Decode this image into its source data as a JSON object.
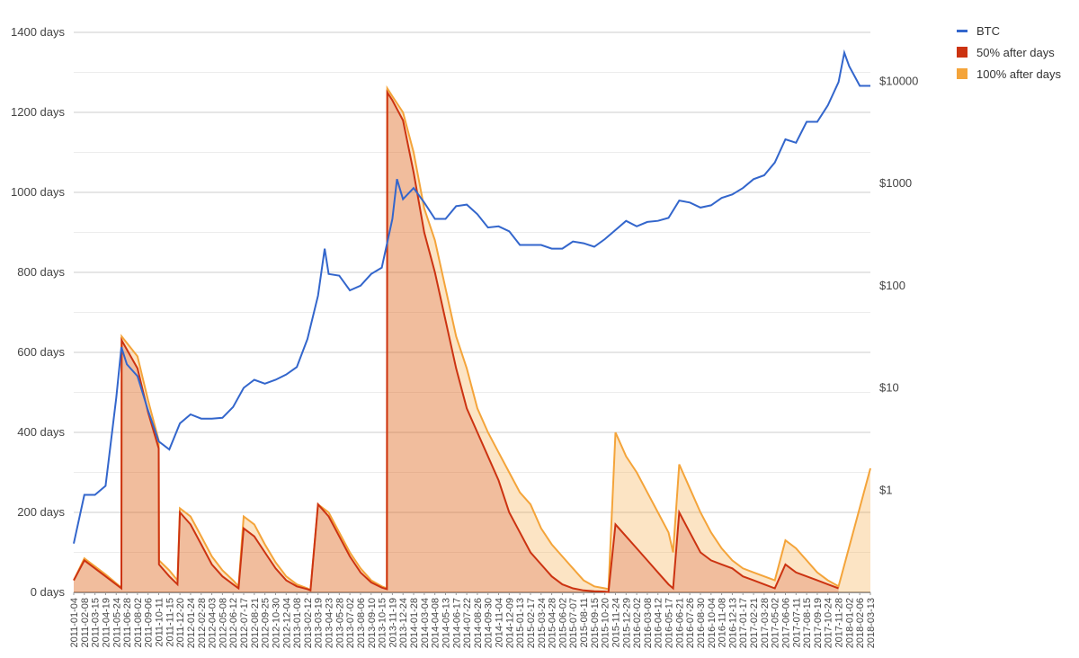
{
  "chart_data": {
    "type": "area",
    "title": "",
    "xlabel": "",
    "ylabel": "",
    "y_axis_left": {
      "ticks": [
        "0 days",
        "200 days",
        "400 days",
        "600 days",
        "800 days",
        "1000 days",
        "1200 days",
        "1400 days"
      ],
      "values": [
        0,
        200,
        400,
        600,
        800,
        1000,
        1200,
        1400
      ],
      "ylim": [
        0,
        1400
      ]
    },
    "y_axis_right": {
      "scale": "log",
      "ticks": [
        "$1",
        "$10",
        "$100",
        "$1000",
        "$10000"
      ],
      "values": [
        1,
        10,
        100,
        1000,
        10000
      ],
      "ylim": [
        0.1,
        30000
      ]
    },
    "grid": true,
    "legend_position": "top-right",
    "x_ticks": [
      "2011-01-04",
      "2011-02-08",
      "2011-03-15",
      "2011-04-19",
      "2011-05-24",
      "2011-06-28",
      "2011-08-02",
      "2011-09-06",
      "2011-10-11",
      "2011-11-15",
      "2011-12-20",
      "2012-01-24",
      "2012-02-28",
      "2012-04-03",
      "2012-05-08",
      "2012-06-12",
      "2012-07-17",
      "2012-08-21",
      "2012-09-25",
      "2012-10-30",
      "2012-12-04",
      "2013-01-08",
      "2013-02-12",
      "2013-03-19",
      "2013-04-23",
      "2013-05-28",
      "2013-07-02",
      "2013-08-06",
      "2013-09-10",
      "2013-10-15",
      "2013-11-19",
      "2013-12-24",
      "2014-01-28",
      "2014-03-04",
      "2014-04-08",
      "2014-05-13",
      "2014-06-17",
      "2014-07-22",
      "2014-08-26",
      "2014-09-30",
      "2014-11-04",
      "2014-12-09",
      "2015-01-13",
      "2015-02-17",
      "2015-03-24",
      "2015-04-28",
      "2015-06-02",
      "2015-07-07",
      "2015-08-11",
      "2015-09-15",
      "2015-10-20",
      "2015-11-24",
      "2015-12-29",
      "2016-02-02",
      "2016-03-08",
      "2016-04-12",
      "2016-05-17",
      "2016-06-21",
      "2016-07-26",
      "2016-08-30",
      "2016-10-04",
      "2016-11-08",
      "2016-12-13",
      "2017-01-17",
      "2017-02-21",
      "2017-03-28",
      "2017-05-02",
      "2017-06-06",
      "2017-07-11",
      "2017-08-15",
      "2017-09-19",
      "2017-10-24",
      "2017-11-28",
      "2018-01-02",
      "2018-02-06",
      "2018-03-13"
    ],
    "series": [
      {
        "name": "BTC",
        "kind": "line",
        "axis": "right",
        "color": "#3366cc",
        "x": [
          "2011-01-04",
          "2011-02-08",
          "2011-03-15",
          "2011-04-19",
          "2011-05-24",
          "2011-06-10",
          "2011-06-28",
          "2011-08-02",
          "2011-09-06",
          "2011-10-11",
          "2011-11-15",
          "2011-12-20",
          "2012-01-24",
          "2012-02-28",
          "2012-04-03",
          "2012-05-08",
          "2012-06-12",
          "2012-07-17",
          "2012-08-21",
          "2012-09-25",
          "2012-10-30",
          "2012-12-04",
          "2013-01-08",
          "2013-02-12",
          "2013-03-19",
          "2013-04-10",
          "2013-04-23",
          "2013-05-28",
          "2013-07-02",
          "2013-08-06",
          "2013-09-10",
          "2013-10-15",
          "2013-11-19",
          "2013-12-04",
          "2013-12-24",
          "2014-01-28",
          "2014-03-04",
          "2014-04-08",
          "2014-05-13",
          "2014-06-17",
          "2014-07-22",
          "2014-08-26",
          "2014-09-30",
          "2014-11-04",
          "2014-12-09",
          "2015-01-13",
          "2015-02-17",
          "2015-03-24",
          "2015-04-28",
          "2015-06-02",
          "2015-07-07",
          "2015-08-11",
          "2015-09-15",
          "2015-10-20",
          "2015-11-24",
          "2015-12-29",
          "2016-02-02",
          "2016-03-08",
          "2016-04-12",
          "2016-05-17",
          "2016-06-21",
          "2016-07-26",
          "2016-08-30",
          "2016-10-04",
          "2016-11-08",
          "2016-12-13",
          "2017-01-17",
          "2017-02-21",
          "2017-03-28",
          "2017-05-02",
          "2017-06-06",
          "2017-07-11",
          "2017-08-15",
          "2017-09-19",
          "2017-10-24",
          "2017-11-28",
          "2017-12-17",
          "2018-01-02",
          "2018-02-06",
          "2018-03-13"
        ],
        "values": [
          0.3,
          0.9,
          0.9,
          1.1,
          8,
          25,
          17,
          13,
          6,
          3,
          2.5,
          4.5,
          5.5,
          5,
          5,
          5.1,
          6.5,
          10,
          12,
          11,
          12,
          13.5,
          16,
          30,
          80,
          230,
          130,
          125,
          90,
          100,
          130,
          150,
          450,
          1100,
          700,
          900,
          650,
          450,
          450,
          600,
          620,
          500,
          370,
          380,
          340,
          250,
          250,
          250,
          230,
          230,
          270,
          260,
          240,
          285,
          350,
          430,
          380,
          420,
          430,
          460,
          680,
          650,
          580,
          610,
          720,
          780,
          900,
          1100,
          1200,
          1600,
          2700,
          2500,
          4000,
          4000,
          5800,
          9800,
          19000,
          14000,
          9000,
          9000
        ]
      },
      {
        "name": "50% after days",
        "kind": "area",
        "axis": "left",
        "color": "#cc3311",
        "x": [
          "2011-01-04",
          "2011-02-08",
          "2011-04-19",
          "2011-06-10",
          "2011-06-11",
          "2011-08-02",
          "2011-09-06",
          "2011-10-11",
          "2011-10-12",
          "2011-11-15",
          "2011-12-12",
          "2011-12-20",
          "2012-01-24",
          "2012-02-28",
          "2012-04-03",
          "2012-05-08",
          "2012-06-12",
          "2012-06-30",
          "2012-07-17",
          "2012-08-21",
          "2012-09-25",
          "2012-10-30",
          "2012-12-04",
          "2013-01-08",
          "2013-02-12",
          "2013-02-22",
          "2013-03-19",
          "2013-04-23",
          "2013-05-28",
          "2013-07-02",
          "2013-08-06",
          "2013-09-10",
          "2013-10-15",
          "2013-11-01",
          "2013-11-02",
          "2013-11-19",
          "2013-12-24",
          "2014-01-28",
          "2014-03-04",
          "2014-04-08",
          "2014-05-13",
          "2014-06-17",
          "2014-07-22",
          "2014-08-26",
          "2014-09-30",
          "2014-11-04",
          "2014-12-09",
          "2015-01-13",
          "2015-02-17",
          "2015-03-24",
          "2015-04-28",
          "2015-06-02",
          "2015-07-07",
          "2015-08-11",
          "2015-09-15",
          "2015-10-20",
          "2015-11-01",
          "2015-11-24",
          "2015-12-29",
          "2016-02-02",
          "2016-03-08",
          "2016-04-12",
          "2016-05-17",
          "2016-06-01",
          "2016-06-21",
          "2016-07-26",
          "2016-08-30",
          "2016-10-04",
          "2016-11-08",
          "2016-12-13",
          "2017-01-17",
          "2017-02-21",
          "2017-03-28",
          "2017-05-02",
          "2017-06-06",
          "2017-07-11",
          "2017-08-15",
          "2017-09-19",
          "2017-10-24",
          "2017-11-28"
        ],
        "values": [
          30,
          80,
          40,
          10,
          630,
          560,
          450,
          360,
          70,
          40,
          20,
          200,
          170,
          120,
          70,
          40,
          20,
          10,
          160,
          140,
          100,
          60,
          30,
          15,
          8,
          5,
          220,
          190,
          140,
          90,
          50,
          25,
          12,
          8,
          1250,
          1230,
          1180,
          1050,
          900,
          800,
          680,
          560,
          460,
          400,
          340,
          280,
          200,
          150,
          100,
          70,
          40,
          20,
          10,
          5,
          3,
          2,
          1,
          170,
          140,
          110,
          80,
          50,
          20,
          10,
          200,
          150,
          100,
          80,
          70,
          60,
          40,
          30,
          20,
          10,
          70,
          50,
          40,
          30,
          20,
          10
        ]
      },
      {
        "name": "100% after days",
        "kind": "area",
        "axis": "left",
        "color": "#f4a43a",
        "x": [
          "2011-01-04",
          "2011-02-08",
          "2011-04-19",
          "2011-06-10",
          "2011-06-11",
          "2011-08-02",
          "2011-09-06",
          "2011-10-11",
          "2011-10-12",
          "2011-11-15",
          "2011-12-12",
          "2011-12-20",
          "2012-01-24",
          "2012-02-28",
          "2012-04-03",
          "2012-05-08",
          "2012-06-12",
          "2012-06-30",
          "2012-07-17",
          "2012-08-21",
          "2012-09-25",
          "2012-10-30",
          "2012-12-04",
          "2013-01-08",
          "2013-02-12",
          "2013-02-22",
          "2013-03-19",
          "2013-04-23",
          "2013-05-28",
          "2013-07-02",
          "2013-08-06",
          "2013-09-10",
          "2013-10-15",
          "2013-11-01",
          "2013-11-02",
          "2013-11-19",
          "2013-12-24",
          "2014-01-28",
          "2014-03-04",
          "2014-04-08",
          "2014-05-13",
          "2014-06-17",
          "2014-07-22",
          "2014-08-26",
          "2014-09-30",
          "2014-11-04",
          "2014-12-09",
          "2015-01-13",
          "2015-02-17",
          "2015-03-24",
          "2015-04-28",
          "2015-06-02",
          "2015-07-07",
          "2015-08-11",
          "2015-09-15",
          "2015-10-20",
          "2015-11-01",
          "2015-11-24",
          "2015-12-29",
          "2016-02-02",
          "2016-03-08",
          "2016-04-12",
          "2016-05-17",
          "2016-06-01",
          "2016-06-21",
          "2016-07-26",
          "2016-08-30",
          "2016-10-04",
          "2016-11-08",
          "2016-12-13",
          "2017-01-17",
          "2017-02-21",
          "2017-03-28",
          "2017-05-02",
          "2017-06-06",
          "2017-07-11",
          "2017-08-15",
          "2017-09-19",
          "2017-10-24",
          "2017-11-28",
          "2018-03-13"
        ],
        "values": [
          30,
          85,
          45,
          12,
          640,
          590,
          480,
          380,
          80,
          55,
          30,
          210,
          190,
          140,
          90,
          55,
          30,
          15,
          190,
          170,
          120,
          75,
          40,
          20,
          10,
          6,
          220,
          200,
          150,
          100,
          60,
          30,
          15,
          10,
          1260,
          1240,
          1200,
          1100,
          960,
          880,
          760,
          640,
          560,
          460,
          400,
          350,
          300,
          250,
          220,
          160,
          120,
          90,
          60,
          30,
          15,
          10,
          8,
          400,
          340,
          300,
          250,
          200,
          150,
          100,
          320,
          260,
          200,
          150,
          110,
          80,
          60,
          50,
          40,
          30,
          130,
          110,
          80,
          50,
          30,
          15,
          310
        ]
      }
    ]
  }
}
